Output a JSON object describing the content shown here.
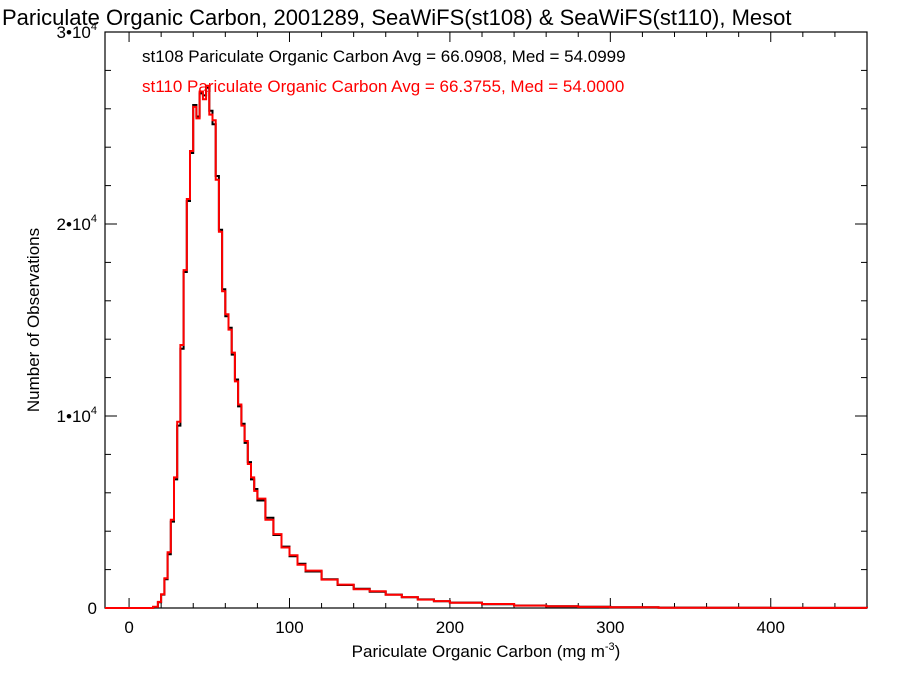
{
  "chart_data": {
    "type": "line",
    "title": "Pariculate Organic Carbon, 2001289, SeaWiFS(st108) & SeaWiFS(st110), Mesot",
    "xlabel": "Pariculate Organic Carbon (mg m",
    "xlabel_exponent": "-3",
    "xlabel_suffix": ")",
    "ylabel": "Number of Observations",
    "xlim": [
      -15,
      460
    ],
    "ylim": [
      0,
      30000
    ],
    "x_ticks": [
      0,
      100,
      200,
      300,
      400
    ],
    "x_tick_labels": [
      "0",
      "100",
      "200",
      "300",
      "400"
    ],
    "y_ticks": [
      0,
      10000,
      20000,
      30000
    ],
    "y_tick_labels": [
      {
        "mantissa": "0",
        "exp": ""
      },
      {
        "mantissa": "1•10",
        "exp": "4"
      },
      {
        "mantissa": "2•10",
        "exp": "4"
      },
      {
        "mantissa": "3•10",
        "exp": "4"
      }
    ],
    "grid": false,
    "legend_position": "top-left",
    "series": [
      {
        "name": "st108",
        "label": "st108 Pariculate Organic Carbon Avg = 66.0908, Med = 54.0999",
        "color": "#000000",
        "x": [
          -15,
          10,
          15,
          18,
          20,
          22,
          24,
          26,
          28,
          30,
          32,
          34,
          36,
          38,
          40,
          42,
          44,
          46,
          48,
          50,
          52,
          54,
          56,
          58,
          60,
          62,
          64,
          66,
          68,
          70,
          72,
          74,
          76,
          78,
          80,
          85,
          90,
          95,
          100,
          105,
          110,
          120,
          130,
          140,
          150,
          160,
          170,
          180,
          190,
          200,
          220,
          240,
          260,
          280,
          300,
          330,
          360,
          400,
          460
        ],
        "y": [
          0,
          0,
          50,
          300,
          700,
          1500,
          2800,
          4500,
          6700,
          9500,
          13500,
          17500,
          21200,
          23700,
          26200,
          25600,
          26800,
          26700,
          27100,
          25900,
          25200,
          22500,
          19700,
          16600,
          15200,
          14600,
          13200,
          11900,
          10500,
          9600,
          8600,
          7600,
          6700,
          6200,
          5600,
          4700,
          3800,
          3200,
          2700,
          2300,
          1900,
          1500,
          1200,
          1000,
          850,
          700,
          560,
          450,
          350,
          280,
          200,
          130,
          90,
          60,
          40,
          20,
          10,
          4,
          2
        ]
      },
      {
        "name": "st110",
        "label": "st110 Pariculate Organic Carbon Avg = 66.3755, Med = 54.0000",
        "color": "#ff0000",
        "x": [
          -15,
          10,
          15,
          18,
          20,
          22,
          24,
          26,
          28,
          30,
          32,
          34,
          36,
          38,
          40,
          42,
          44,
          46,
          48,
          50,
          52,
          54,
          56,
          58,
          60,
          62,
          64,
          66,
          68,
          70,
          72,
          74,
          76,
          78,
          80,
          85,
          90,
          95,
          100,
          105,
          110,
          120,
          130,
          140,
          150,
          160,
          170,
          180,
          190,
          200,
          220,
          240,
          260,
          280,
          300,
          330,
          360,
          400,
          460
        ],
        "y": [
          0,
          0,
          60,
          320,
          720,
          1550,
          2900,
          4600,
          6800,
          9700,
          13700,
          17600,
          21300,
          23800,
          26100,
          25500,
          26900,
          26500,
          27200,
          25700,
          25400,
          22300,
          19600,
          16500,
          15300,
          14500,
          13300,
          11800,
          10600,
          9500,
          8700,
          7500,
          6800,
          6100,
          5700,
          4600,
          3850,
          3150,
          2750,
          2250,
          1950,
          1480,
          1220,
          980,
          870,
          690,
          570,
          440,
          360,
          270,
          210,
          125,
          95,
          55,
          42,
          18,
          11,
          3,
          2
        ]
      }
    ]
  }
}
